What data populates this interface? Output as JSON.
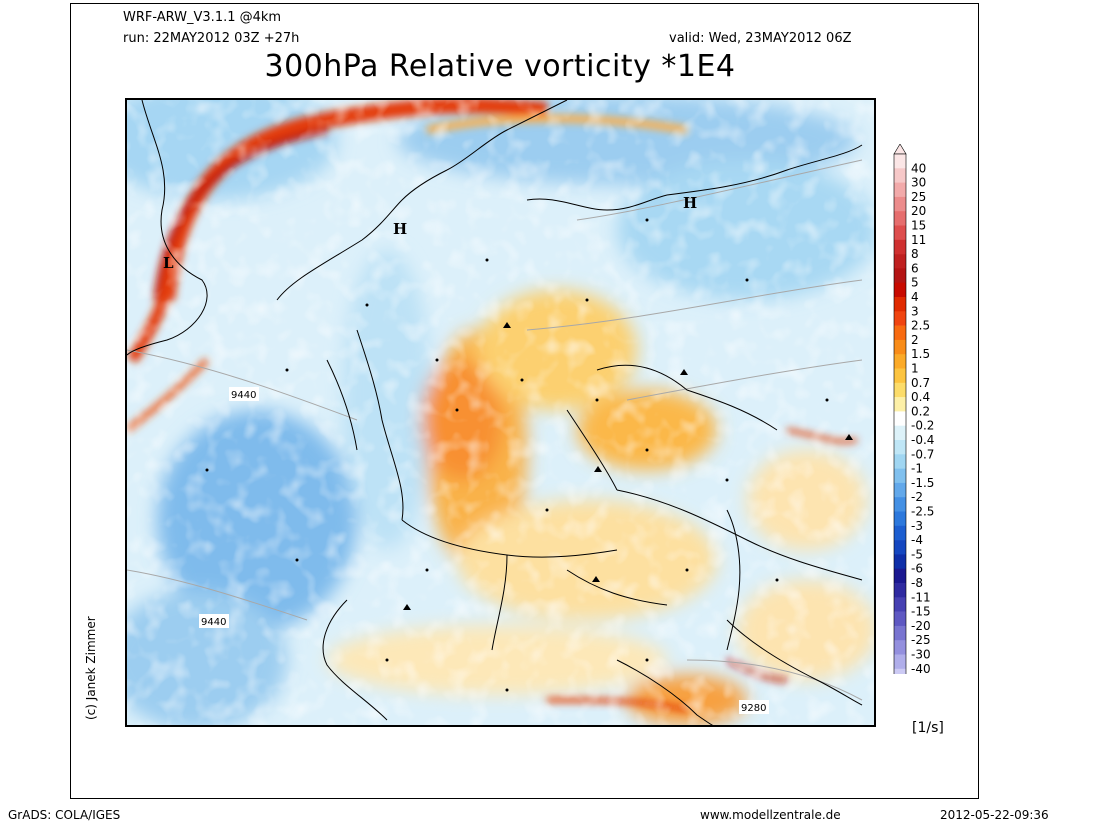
{
  "header": {
    "model": "WRF-ARW_V3.1.1 @4km",
    "run": "run: 22MAY2012 03Z +27h",
    "valid": "valid: Wed, 23MAY2012 06Z",
    "title": "300hPa Relative vorticity *1E4"
  },
  "credit": "(c) Janek Zimmer",
  "units": "[1/s]",
  "footer": {
    "grads": "GrADS: COLA/IGES",
    "site": "www.modellzentrale.de",
    "timestamp": "2012-05-22-09:36"
  },
  "pressure_marks": [
    {
      "id": "low-west",
      "label": "L"
    },
    {
      "id": "high-north-sea",
      "label": "H"
    },
    {
      "id": "high-east",
      "label": "H"
    }
  ],
  "contour_labels": [
    "9440",
    "9440",
    "9280"
  ],
  "colorbar": {
    "ticks": [
      "40",
      "30",
      "25",
      "20",
      "15",
      "11",
      "8",
      "6",
      "5",
      "4",
      "3",
      "2.5",
      "2",
      "1.5",
      "1",
      "0.7",
      "0.4",
      "0.2",
      "-0.2",
      "-0.4",
      "-0.7",
      "-1",
      "-1.5",
      "-2",
      "-2.5",
      "-3",
      "-4",
      "-5",
      "-6",
      "-8",
      "-11",
      "-15",
      "-20",
      "-25",
      "-30",
      "-40"
    ],
    "colors": [
      "#fbe6e6",
      "#f6c8c8",
      "#f2aaaa",
      "#ec8c8c",
      "#e66e6e",
      "#de4e4e",
      "#cf3030",
      "#bf2020",
      "#b41414",
      "#c80a00",
      "#e02a00",
      "#f04410",
      "#f86a10",
      "#f98c18",
      "#fbaa28",
      "#fcc440",
      "#fcdc6a",
      "#fdf0a8",
      "#ffffff",
      "#ddf2f9",
      "#bfe6f6",
      "#a0d6f2",
      "#80c0ee",
      "#62a8ea",
      "#4490e4",
      "#2c78dc",
      "#1c5ed0",
      "#1446c0",
      "#0e2ea8",
      "#1a1890",
      "#2e2aa0",
      "#4640b2",
      "#5e58c2",
      "#7874d0",
      "#9490de",
      "#b0aeea",
      "#cccaf4"
    ]
  }
}
